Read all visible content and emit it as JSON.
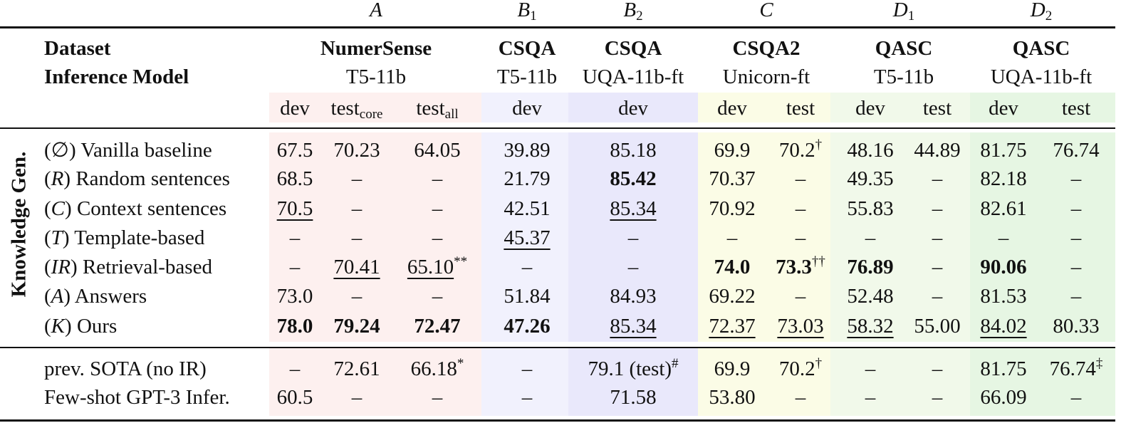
{
  "column_groups": [
    {
      "letter": "A",
      "sub": "",
      "dataset": "NumerSense",
      "model": "T5-11b"
    },
    {
      "letter": "B",
      "sub": "1",
      "dataset": "CSQA",
      "model": "T5-11b"
    },
    {
      "letter": "B",
      "sub": "2",
      "dataset": "CSQA",
      "model": "UQA-11b-ft"
    },
    {
      "letter": "C",
      "sub": "",
      "dataset": "CSQA2",
      "model": "Unicorn-ft"
    },
    {
      "letter": "D",
      "sub": "1",
      "dataset": "QASC",
      "model": "T5-11b"
    },
    {
      "letter": "D",
      "sub": "2",
      "dataset": "QASC",
      "model": "UQA-11b-ft"
    }
  ],
  "header_labels": {
    "dataset": "Dataset",
    "inference_model": "Inference Model"
  },
  "splits": [
    "dev",
    "test_core",
    "test_all",
    "dev",
    "dev",
    "dev",
    "test",
    "dev",
    "test",
    "dev",
    "test"
  ],
  "split_display": {
    "test": "test",
    "core": "core",
    "all": "all"
  },
  "section_label": "Knowledge Gen.",
  "group_colors": {
    "A": "#fdf0ef",
    "B1": "#f1f1fd",
    "B2": "#e9e8fb",
    "C": "#fbfce6",
    "D1": "#f1f9ea",
    "D2": "#e6f6e3"
  },
  "methods": [
    {
      "sym": "∅",
      "label": "Vanilla baseline",
      "cells": [
        {
          "v": "67.5"
        },
        {
          "v": "70.23"
        },
        {
          "v": "64.05"
        },
        {
          "v": "39.89"
        },
        {
          "v": "85.18"
        },
        {
          "v": "69.9"
        },
        {
          "v": "70.2",
          "sup": "†"
        },
        {
          "v": "48.16"
        },
        {
          "v": "44.89"
        },
        {
          "v": "81.75"
        },
        {
          "v": "76.74"
        }
      ]
    },
    {
      "sym": "R",
      "label": "Random sentences",
      "cells": [
        {
          "v": "68.5"
        },
        {
          "v": "–"
        },
        {
          "v": "–"
        },
        {
          "v": "21.79"
        },
        {
          "v": "85.42",
          "b": true
        },
        {
          "v": "70.37"
        },
        {
          "v": "–"
        },
        {
          "v": "49.35"
        },
        {
          "v": "–"
        },
        {
          "v": "82.18"
        },
        {
          "v": "–"
        }
      ]
    },
    {
      "sym": "C",
      "label": "Context sentences",
      "cells": [
        {
          "v": "70.5",
          "u": true
        },
        {
          "v": "–"
        },
        {
          "v": "–"
        },
        {
          "v": "42.51"
        },
        {
          "v": "85.34",
          "u": true
        },
        {
          "v": "70.92"
        },
        {
          "v": "–"
        },
        {
          "v": "55.83"
        },
        {
          "v": "–"
        },
        {
          "v": "82.61"
        },
        {
          "v": "–"
        }
      ]
    },
    {
      "sym": "T",
      "label": "Template-based",
      "cells": [
        {
          "v": "–"
        },
        {
          "v": "–"
        },
        {
          "v": "–"
        },
        {
          "v": "45.37",
          "u": true
        },
        {
          "v": "–"
        },
        {
          "v": "–"
        },
        {
          "v": "–"
        },
        {
          "v": "–"
        },
        {
          "v": "–"
        },
        {
          "v": "–"
        },
        {
          "v": "–"
        }
      ]
    },
    {
      "sym": "IR",
      "label": "Retrieval-based",
      "cells": [
        {
          "v": "–"
        },
        {
          "v": "70.41",
          "u": true
        },
        {
          "v": "65.10",
          "u": true,
          "sup": "**"
        },
        {
          "v": "–"
        },
        {
          "v": "–"
        },
        {
          "v": "74.0",
          "b": true
        },
        {
          "v": "73.3",
          "b": true,
          "sup": "††"
        },
        {
          "v": "76.89",
          "b": true
        },
        {
          "v": "–"
        },
        {
          "v": "90.06",
          "b": true
        },
        {
          "v": "–"
        }
      ]
    },
    {
      "sym": "A",
      "label": "Answers",
      "cells": [
        {
          "v": "73.0"
        },
        {
          "v": "–"
        },
        {
          "v": "–"
        },
        {
          "v": "51.84"
        },
        {
          "v": "84.93"
        },
        {
          "v": "69.22"
        },
        {
          "v": "–"
        },
        {
          "v": "52.48"
        },
        {
          "v": "–"
        },
        {
          "v": "81.53"
        },
        {
          "v": "–"
        }
      ]
    },
    {
      "sym": "K",
      "label": "Ours",
      "cells": [
        {
          "v": "78.0",
          "b": true
        },
        {
          "v": "79.24",
          "b": true
        },
        {
          "v": "72.47",
          "b": true
        },
        {
          "v": "47.26",
          "b": true
        },
        {
          "v": "85.34",
          "u": true
        },
        {
          "v": "72.37",
          "u": true
        },
        {
          "v": "73.03",
          "u": true
        },
        {
          "v": "58.32",
          "u": true
        },
        {
          "v": "55.00"
        },
        {
          "v": "84.02",
          "u": true
        },
        {
          "v": "80.33"
        }
      ]
    }
  ],
  "bottom_rows": [
    {
      "label": "prev. SOTA (no IR)",
      "cells": [
        {
          "v": "–"
        },
        {
          "v": "72.61"
        },
        {
          "v": "66.18",
          "sup": "*"
        },
        {
          "v": "–"
        },
        {
          "v": "79.1 (test)",
          "sup": "#"
        },
        {
          "v": "69.9"
        },
        {
          "v": "70.2",
          "sup": "†"
        },
        {
          "v": "–"
        },
        {
          "v": "–"
        },
        {
          "v": "81.75"
        },
        {
          "v": "76.74",
          "sup": "‡"
        }
      ]
    },
    {
      "label": "Few-shot GPT-3 Infer.",
      "cells": [
        {
          "v": "60.5"
        },
        {
          "v": "–"
        },
        {
          "v": "–"
        },
        {
          "v": "–"
        },
        {
          "v": "71.58"
        },
        {
          "v": "53.80"
        },
        {
          "v": "–"
        },
        {
          "v": "–"
        },
        {
          "v": "–"
        },
        {
          "v": "66.09"
        },
        {
          "v": "–"
        }
      ]
    }
  ]
}
